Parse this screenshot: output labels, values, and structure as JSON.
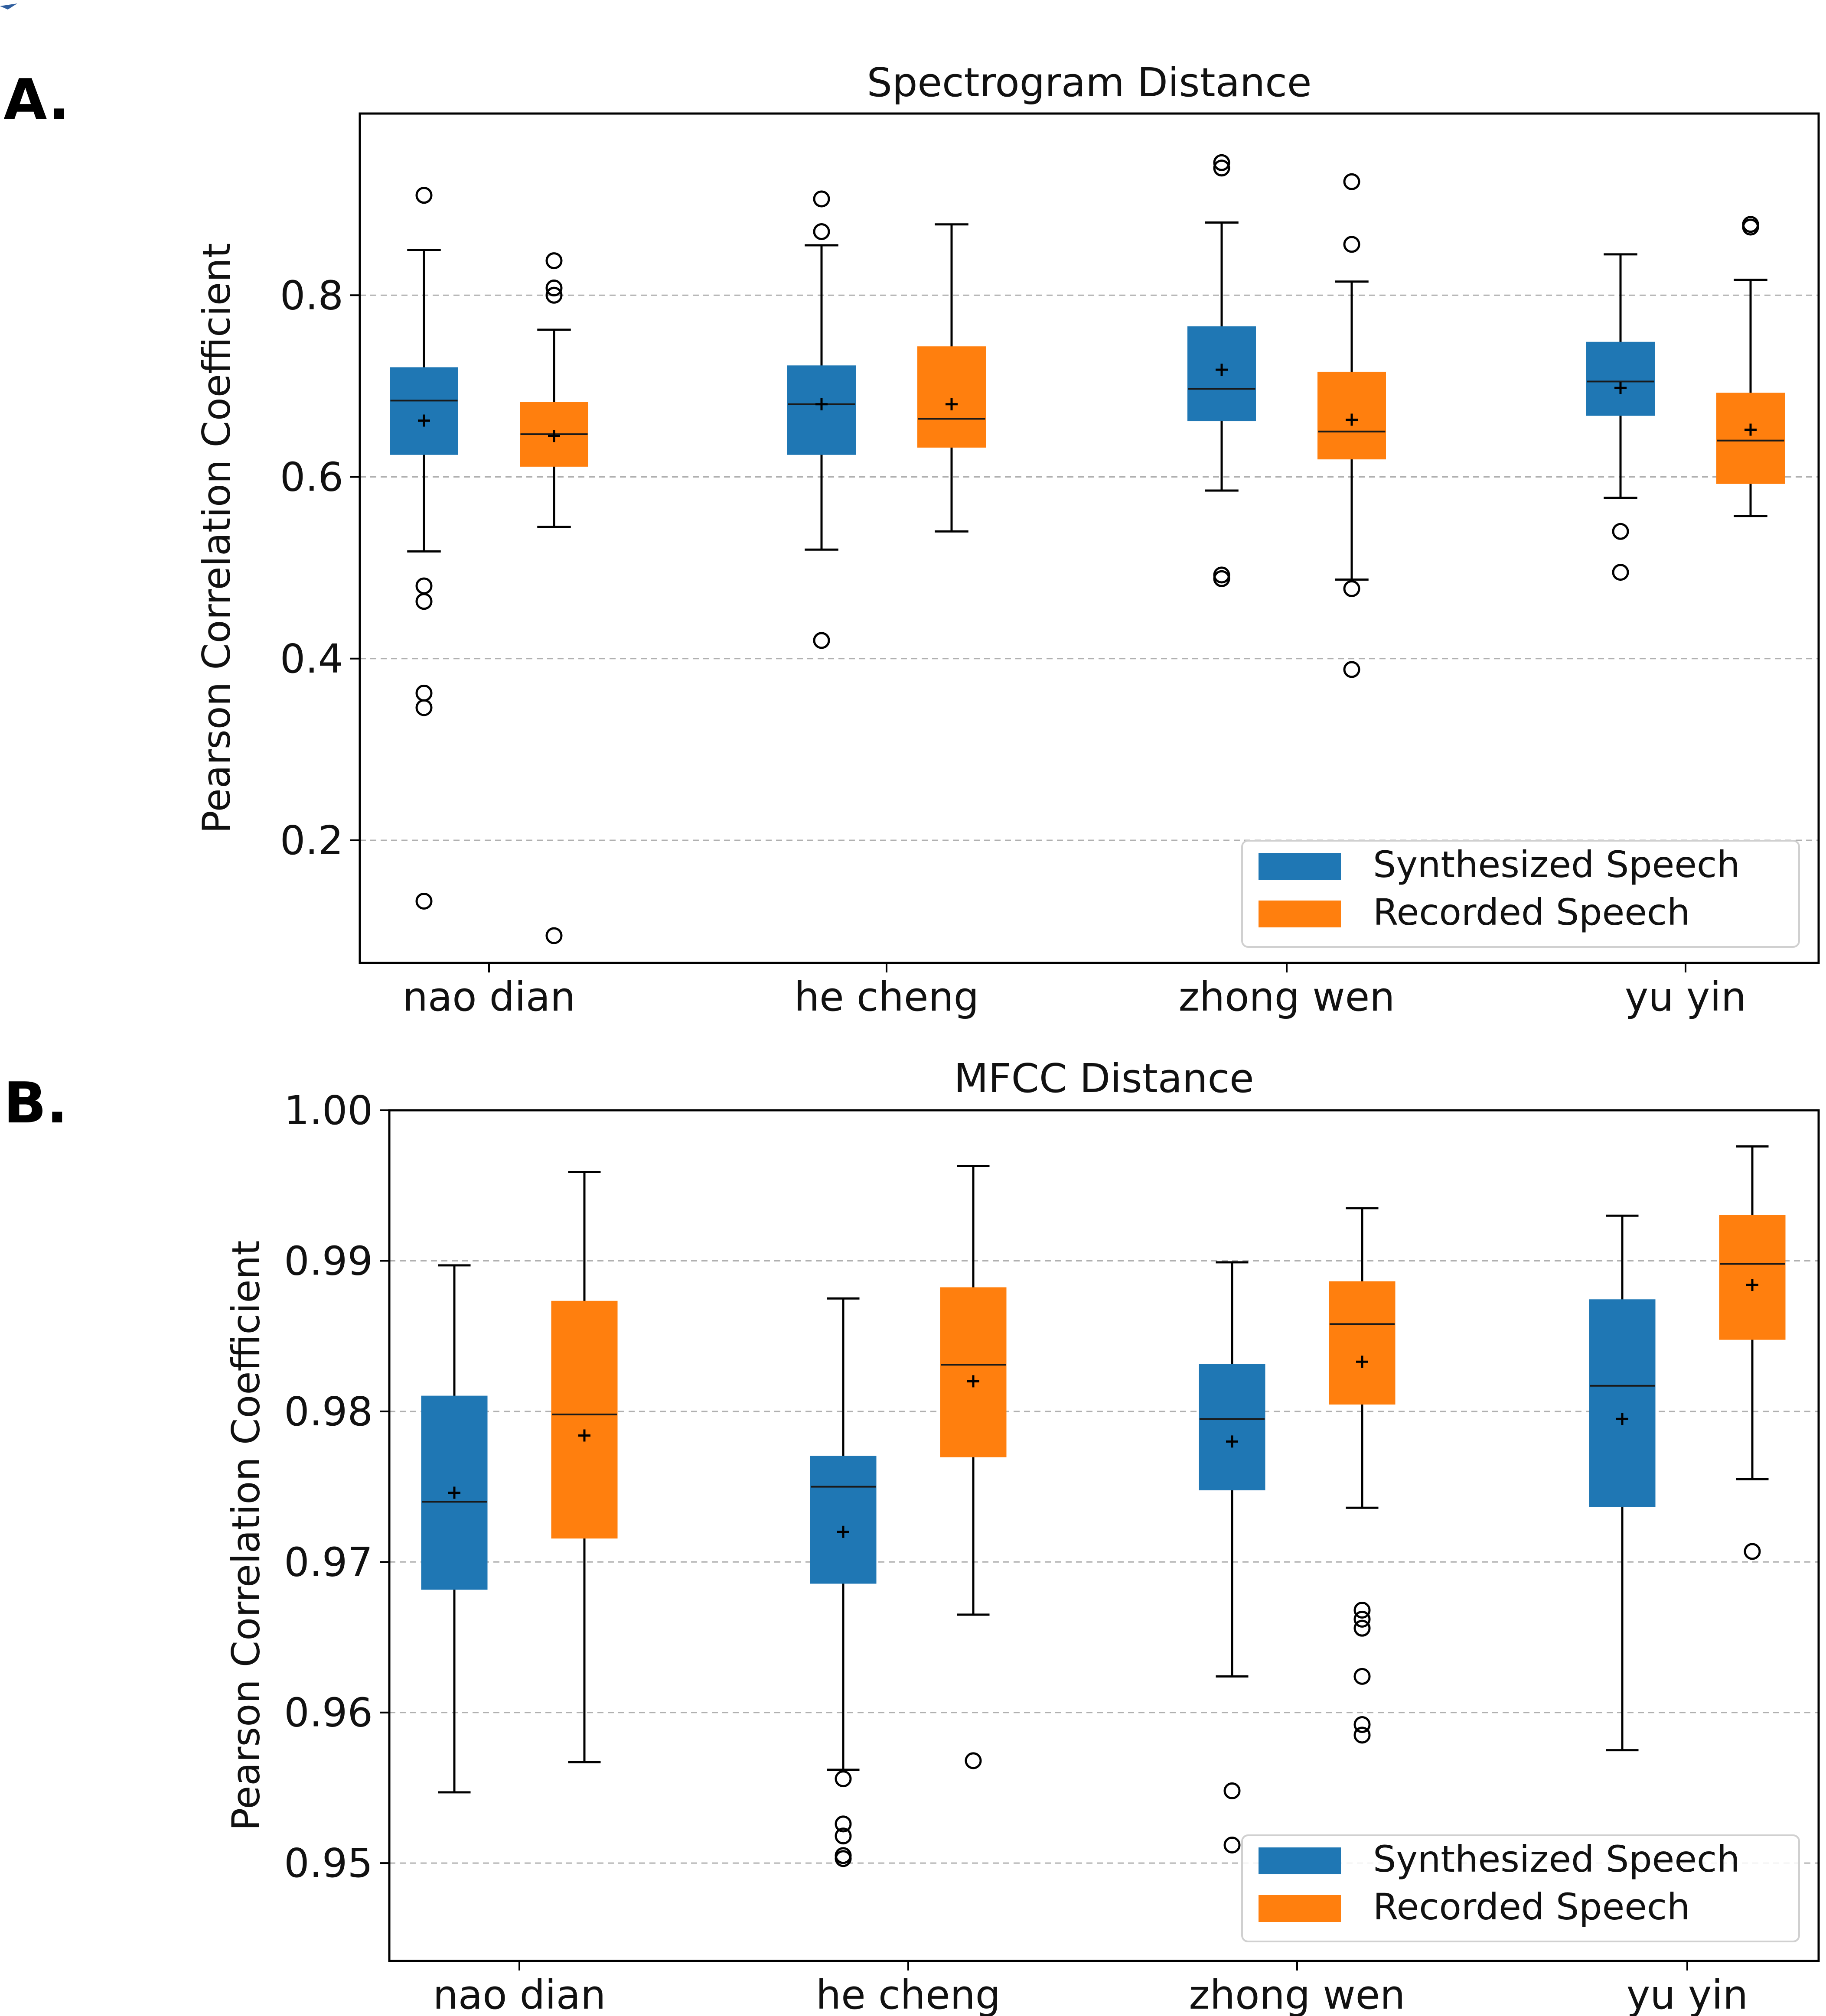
{
  "figure": {
    "panels": [
      "A.",
      "B."
    ]
  },
  "legend": {
    "entries": [
      "Synthesized Speech",
      "Recorded Speech"
    ],
    "placement": "lower-right"
  },
  "colors": {
    "synthesized": "#1f77b4",
    "recorded": "#ff7f0e",
    "grid": "#b0b0b0",
    "axis": "#000000"
  },
  "chart_data": [
    {
      "type": "box",
      "panel_label": "A.",
      "title": "Spectrogram Distance",
      "xlabel": "",
      "ylabel": "Pearson Correlation Coefficient",
      "ylim": [
        0.065,
        1.0
      ],
      "yticks": [
        0.2,
        0.4,
        0.6,
        0.8
      ],
      "ytick_labels": [
        "0.2",
        "0.4",
        "0.6",
        "0.8"
      ],
      "grid": "y-dashed",
      "categories": [
        "nao dian",
        "he cheng",
        "zhong wen",
        "yu yin"
      ],
      "series": [
        {
          "name": "Synthesized Speech",
          "boxes": [
            {
              "whislo": 0.518,
              "q1": 0.625,
              "med": 0.684,
              "q3": 0.72,
              "whishi": 0.85,
              "mean": 0.662,
              "fliers": [
                0.91,
                0.48,
                0.463,
                0.362,
                0.346,
                0.133
              ]
            },
            {
              "whislo": 0.52,
              "q1": 0.625,
              "med": 0.68,
              "q3": 0.722,
              "whishi": 0.855,
              "mean": 0.68,
              "fliers": [
                0.906,
                0.87,
                0.42
              ]
            },
            {
              "whislo": 0.585,
              "q1": 0.662,
              "med": 0.697,
              "q3": 0.765,
              "whishi": 0.88,
              "mean": 0.718,
              "fliers": [
                0.946,
                0.94,
                0.492,
                0.488
              ]
            },
            {
              "whislo": 0.577,
              "q1": 0.668,
              "med": 0.705,
              "q3": 0.748,
              "whishi": 0.845,
              "mean": 0.698,
              "fliers": [
                0.54,
                0.495
              ]
            }
          ]
        },
        {
          "name": "Recorded Speech",
          "boxes": [
            {
              "whislo": 0.545,
              "q1": 0.612,
              "med": 0.647,
              "q3": 0.682,
              "whishi": 0.762,
              "mean": 0.645,
              "fliers": [
                0.838,
                0.808,
                0.8,
                0.095
              ]
            },
            {
              "whislo": 0.54,
              "q1": 0.633,
              "med": 0.664,
              "q3": 0.743,
              "whishi": 0.878,
              "mean": 0.68,
              "fliers": []
            },
            {
              "whislo": 0.487,
              "q1": 0.62,
              "med": 0.65,
              "q3": 0.715,
              "whishi": 0.815,
              "mean": 0.663,
              "fliers": [
                0.925,
                0.856,
                0.477,
                0.388
              ]
            },
            {
              "whislo": 0.557,
              "q1": 0.593,
              "med": 0.64,
              "q3": 0.692,
              "whishi": 0.817,
              "mean": 0.652,
              "fliers": [
                0.878,
                0.875
              ]
            }
          ]
        }
      ]
    },
    {
      "type": "box",
      "panel_label": "B.",
      "title": "MFCC Distance",
      "xlabel": "",
      "ylabel": "Pearson Correlation Coefficient",
      "ylim": [
        0.9435,
        1.0
      ],
      "yticks": [
        0.95,
        0.96,
        0.97,
        0.98,
        0.99,
        1.0
      ],
      "ytick_labels": [
        "0.95",
        "0.96",
        "0.97",
        "0.98",
        "0.99",
        "1.00"
      ],
      "grid": "y-dashed",
      "categories": [
        "nao dian",
        "he cheng",
        "zhong wen",
        "yu yin"
      ],
      "series": [
        {
          "name": "Synthesized Speech",
          "boxes": [
            {
              "whislo": 0.9547,
              "q1": 0.9682,
              "med": 0.974,
              "q3": 0.981,
              "whishi": 0.9897,
              "mean": 0.9746,
              "fliers": []
            },
            {
              "whislo": 0.9562,
              "q1": 0.9686,
              "med": 0.975,
              "q3": 0.977,
              "whishi": 0.9875,
              "mean": 0.972,
              "fliers": [
                0.9556,
                0.9526,
                0.9518,
                0.9505,
                0.9503
              ]
            },
            {
              "whislo": 0.9624,
              "q1": 0.9748,
              "med": 0.9795,
              "q3": 0.9831,
              "whishi": 0.9899,
              "mean": 0.978,
              "fliers": [
                0.9548,
                0.9512
              ]
            },
            {
              "whislo": 0.9575,
              "q1": 0.9737,
              "med": 0.9817,
              "q3": 0.9874,
              "whishi": 0.993,
              "mean": 0.9795,
              "fliers": []
            }
          ]
        },
        {
          "name": "Recorded Speech",
          "boxes": [
            {
              "whislo": 0.9567,
              "q1": 0.9716,
              "med": 0.9798,
              "q3": 0.9873,
              "whishi": 0.9959,
              "mean": 0.9784,
              "fliers": []
            },
            {
              "whislo": 0.9665,
              "q1": 0.977,
              "med": 0.9831,
              "q3": 0.9882,
              "whishi": 0.9963,
              "mean": 0.982,
              "fliers": [
                0.9568
              ]
            },
            {
              "whislo": 0.9736,
              "q1": 0.9805,
              "med": 0.9858,
              "q3": 0.9886,
              "whishi": 0.9935,
              "mean": 0.9833,
              "fliers": [
                0.9668,
                0.9662,
                0.9656,
                0.9624,
                0.9592,
                0.9585
              ]
            },
            {
              "whislo": 0.9755,
              "q1": 0.9848,
              "med": 0.9898,
              "q3": 0.993,
              "whishi": 0.9976,
              "mean": 0.9884,
              "fliers": [
                0.9707
              ]
            }
          ]
        }
      ]
    }
  ]
}
